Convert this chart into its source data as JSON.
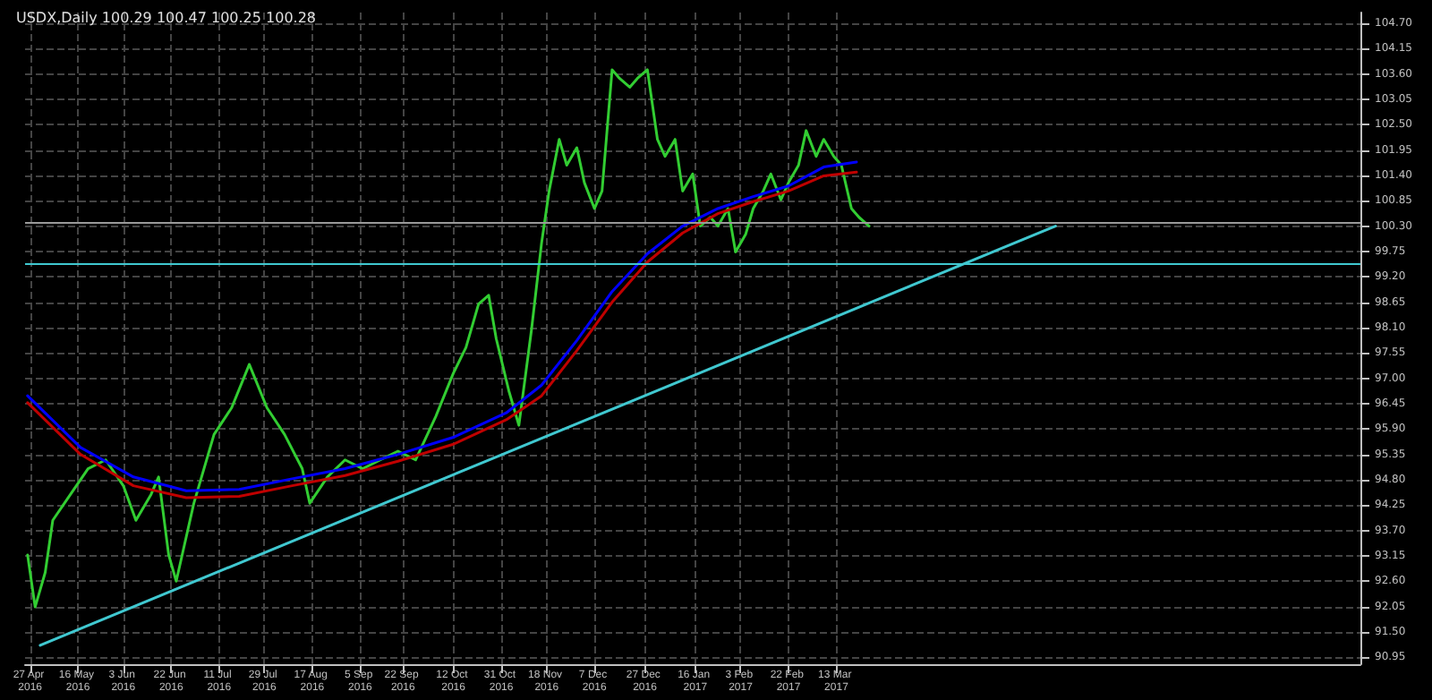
{
  "chart_data": {
    "type": "line",
    "title": "USDX,Daily 100.29 100.47 100.25 100.28",
    "xlim": [
      "2016-04-25",
      "2017-10-07"
    ],
    "xticks": [
      {
        "value": "2016-04-27",
        "label": "27 Apr 2016"
      },
      {
        "value": "2016-05-16",
        "label": "16 May 2016"
      },
      {
        "value": "2016-06-03",
        "label": "3 Jun 2016"
      },
      {
        "value": "2016-06-22",
        "label": "22 Jun 2016"
      },
      {
        "value": "2016-07-11",
        "label": "11 Jul 2016"
      },
      {
        "value": "2016-07-29",
        "label": "29 Jul 2016"
      },
      {
        "value": "2016-08-17",
        "label": "17 Aug 2016"
      },
      {
        "value": "2016-09-05",
        "label": "5 Sep 2016"
      },
      {
        "value": "2016-09-22",
        "label": "22 Sep 2016"
      },
      {
        "value": "2016-10-12",
        "label": "12 Oct 2016"
      },
      {
        "value": "2016-10-31",
        "label": "31 Oct 2016"
      },
      {
        "value": "2016-11-18",
        "label": "18 Nov 2016"
      },
      {
        "value": "2016-12-07",
        "label": "7 Dec 2016"
      },
      {
        "value": "2016-12-27",
        "label": "27 Dec 2016"
      },
      {
        "value": "2017-01-16",
        "label": "16 Jan 2017"
      },
      {
        "value": "2017-02-03",
        "label": "3 Feb 2017"
      },
      {
        "value": "2017-02-22",
        "label": "22 Feb 2017"
      },
      {
        "value": "2017-03-13",
        "label": "13 Mar 2017"
      }
    ],
    "ylim": [
      90.8,
      104.93
    ],
    "yticks": [
      {
        "value": 104.7,
        "label": "104.70"
      },
      {
        "value": 104.15,
        "label": "104.15"
      },
      {
        "value": 103.6,
        "label": "103.60"
      },
      {
        "value": 103.05,
        "label": "103.05"
      },
      {
        "value": 102.5,
        "label": "102.50"
      },
      {
        "value": 101.95,
        "label": "101.95"
      },
      {
        "value": 101.4,
        "label": "101.40"
      },
      {
        "value": 100.85,
        "label": "100.85"
      },
      {
        "value": 100.3,
        "label": "100.30"
      },
      {
        "value": 99.75,
        "label": "99.75"
      },
      {
        "value": 99.2,
        "label": "99.20"
      },
      {
        "value": 98.65,
        "label": "98.65"
      },
      {
        "value": 98.1,
        "label": "98.10"
      },
      {
        "value": 97.55,
        "label": "97.55"
      },
      {
        "value": 97.0,
        "label": "97.00"
      },
      {
        "value": 96.45,
        "label": "96.45"
      },
      {
        "value": 95.9,
        "label": "95.90"
      },
      {
        "value": 95.35,
        "label": "95.35"
      },
      {
        "value": 94.8,
        "label": "94.80"
      },
      {
        "value": 94.25,
        "label": "94.25"
      },
      {
        "value": 93.7,
        "label": "93.70"
      },
      {
        "value": 93.15,
        "label": "93.15"
      },
      {
        "value": 92.6,
        "label": "92.60"
      },
      {
        "value": 92.05,
        "label": "92.05"
      },
      {
        "value": 91.5,
        "label": "91.50"
      },
      {
        "value": 90.95,
        "label": "90.95"
      }
    ],
    "grid": true,
    "marker": "none",
    "line_style": "solid",
    "series": [
      {
        "color": "#32cd32",
        "x": [
          "2016-04-26",
          "2016-04-29",
          "2016-05-03",
          "2016-05-06",
          "2016-05-13",
          "2016-05-20",
          "2016-05-27",
          "2016-06-03",
          "2016-06-08",
          "2016-06-14",
          "2016-06-17",
          "2016-06-21",
          "2016-06-24",
          "2016-07-01",
          "2016-07-09",
          "2016-07-16",
          "2016-07-23",
          "2016-07-30",
          "2016-08-06",
          "2016-08-13",
          "2016-08-16",
          "2016-08-23",
          "2016-08-30",
          "2016-09-06",
          "2016-09-13",
          "2016-09-20",
          "2016-09-27",
          "2016-10-05",
          "2016-10-12",
          "2016-10-17",
          "2016-10-22",
          "2016-10-26",
          "2016-10-29",
          "2016-11-03",
          "2016-11-07",
          "2016-11-12",
          "2016-11-16",
          "2016-11-19",
          "2016-11-23",
          "2016-11-26",
          "2016-11-30",
          "2016-12-03",
          "2016-12-07",
          "2016-12-10",
          "2016-12-14",
          "2016-12-17",
          "2016-12-21",
          "2016-12-24",
          "2016-12-28",
          "2017-01-01",
          "2017-01-04",
          "2017-01-08",
          "2017-01-11",
          "2017-01-15",
          "2017-01-18",
          "2017-01-22",
          "2017-01-25",
          "2017-01-29",
          "2017-02-01",
          "2017-02-05",
          "2017-02-08",
          "2017-02-12",
          "2017-02-15",
          "2017-02-19",
          "2017-02-22",
          "2017-02-26",
          "2017-03-01",
          "2017-03-05",
          "2017-03-08",
          "2017-03-12",
          "2017-03-15",
          "2017-03-19",
          "2017-03-22",
          "2017-03-26"
        ],
        "values": [
          93.17,
          92.04,
          92.79,
          93.92,
          94.48,
          95.04,
          95.23,
          94.67,
          93.92,
          94.48,
          94.86,
          93.17,
          92.6,
          94.29,
          95.78,
          96.36,
          97.3,
          96.36,
          95.78,
          95.04,
          94.29,
          94.86,
          95.23,
          95.04,
          95.23,
          95.42,
          95.23,
          96.17,
          97.11,
          97.67,
          98.61,
          98.8,
          97.86,
          96.73,
          95.98,
          98.05,
          99.93,
          101.06,
          102.18,
          101.62,
          102.0,
          101.24,
          100.68,
          101.06,
          103.69,
          103.5,
          103.31,
          103.5,
          103.69,
          102.18,
          101.81,
          102.18,
          101.06,
          101.43,
          100.3,
          100.49,
          100.3,
          100.68,
          99.74,
          100.12,
          100.68,
          101.06,
          101.43,
          100.87,
          101.24,
          101.62,
          102.37,
          101.81,
          102.18,
          101.81,
          101.62,
          100.68,
          100.49,
          100.3
        ]
      },
      {
        "color": "#0000ff",
        "x": [
          "2016-04-26",
          "2016-05-17",
          "2016-06-07",
          "2016-06-28",
          "2016-07-19",
          "2016-08-09",
          "2016-08-30",
          "2016-09-20",
          "2016-10-12",
          "2016-11-02",
          "2016-11-16",
          "2016-11-30",
          "2016-12-14",
          "2016-12-28",
          "2017-01-11",
          "2017-01-25",
          "2017-02-08",
          "2017-02-22",
          "2017-03-08",
          "2017-03-21"
        ],
        "values": [
          96.62,
          95.5,
          94.86,
          94.56,
          94.59,
          94.82,
          95.04,
          95.35,
          95.72,
          96.25,
          96.85,
          97.82,
          98.88,
          99.7,
          100.3,
          100.68,
          100.94,
          101.17,
          101.58,
          101.69
        ]
      },
      {
        "color": "#c00000",
        "x": [
          "2016-04-26",
          "2016-05-17",
          "2016-06-07",
          "2016-06-28",
          "2016-07-19",
          "2016-08-09",
          "2016-08-30",
          "2016-09-20",
          "2016-10-12",
          "2016-11-02",
          "2016-11-16",
          "2016-11-30",
          "2016-12-14",
          "2016-12-28",
          "2017-01-11",
          "2017-01-25",
          "2017-02-08",
          "2017-02-22",
          "2017-03-08",
          "2017-03-21"
        ],
        "values": [
          96.47,
          95.35,
          94.67,
          94.41,
          94.44,
          94.67,
          94.89,
          95.2,
          95.57,
          96.1,
          96.62,
          97.6,
          98.65,
          99.52,
          100.15,
          100.57,
          100.83,
          101.06,
          101.39,
          101.47
        ]
      },
      {
        "color": "#40c8d0",
        "x": [
          "2016-05-01",
          "2017-06-08"
        ],
        "values": [
          91.21,
          100.3
        ]
      }
    ],
    "ref_lines": [
      {
        "axis": "y",
        "value": 99.5,
        "color": "#40c8d0"
      },
      {
        "axis": "y",
        "value": 100.38,
        "color": "#9a9a9a"
      }
    ]
  }
}
